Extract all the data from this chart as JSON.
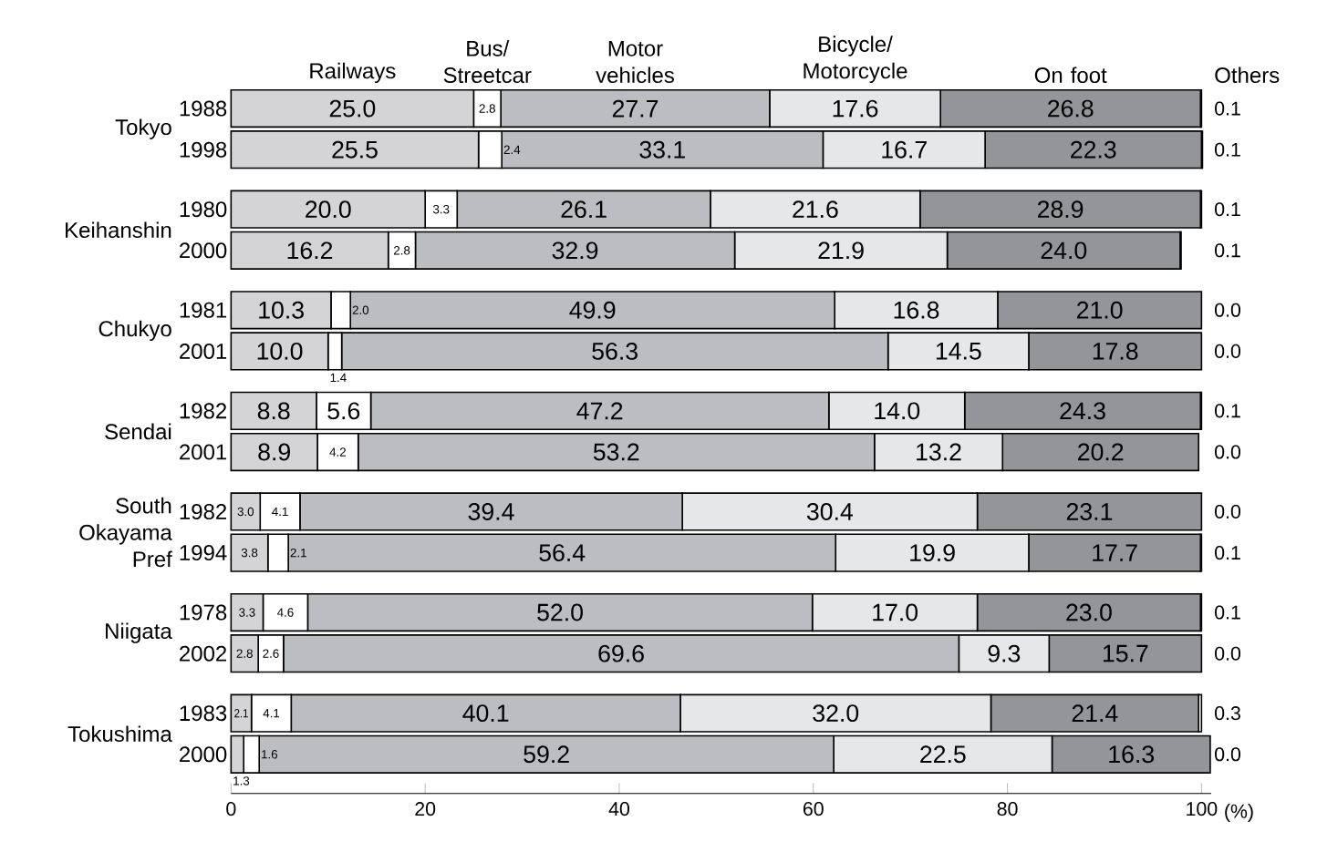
{
  "chart_data": {
    "type": "bar",
    "orientation": "horizontal",
    "stacked": true,
    "legend": "top",
    "grid": false,
    "categories": [
      "1988",
      "1998",
      "1980",
      "2000",
      "1981",
      "2001",
      "1982",
      "2001",
      "1982",
      "1994",
      "1978",
      "2002",
      "1983",
      "2000"
    ],
    "annotations": [
      "Tokyo",
      "Keihanshin",
      "Chukyo",
      "Sendai",
      "South Okayama Pref",
      "Niigata",
      "Tokushima"
    ],
    "xlabel": "(%)",
    "xlim": [
      0,
      101
    ],
    "xticks": [
      0,
      20,
      40,
      60,
      80,
      100
    ],
    "series": [
      {
        "name": "Railways",
        "color": "#d4d4d6",
        "values": [
          25.0,
          25.5,
          20.0,
          16.2,
          10.3,
          10.0,
          8.8,
          8.9,
          3.0,
          3.8,
          3.3,
          2.8,
          2.1,
          1.3
        ],
        "value_labels": [
          "25.0",
          "25.5",
          "20.0",
          "16.2",
          "10.3",
          "10.0",
          "8.8",
          "8.9",
          "3.0",
          "3.8",
          "3.3",
          "2.8",
          "2.1",
          "1.3"
        ]
      },
      {
        "name": "Bus/ Streetcar",
        "color": "#ffffff",
        "values": [
          2.8,
          2.4,
          3.3,
          2.8,
          2.0,
          1.4,
          5.6,
          4.2,
          4.1,
          2.1,
          4.6,
          2.6,
          4.1,
          1.6
        ],
        "value_labels": [
          "2.8",
          "2.4",
          "3.3",
          "2.8",
          "2.0",
          "1.4",
          "5.6",
          "4.2",
          "4.1",
          "2.1",
          "4.6",
          "2.6",
          "4.1",
          "1.6"
        ]
      },
      {
        "name": "Motor vehicles",
        "color": "#bcbdc0",
        "values": [
          27.7,
          33.1,
          26.1,
          32.9,
          49.9,
          56.3,
          47.2,
          53.2,
          39.4,
          56.4,
          52.0,
          69.6,
          40.1,
          59.2
        ],
        "value_labels": [
          "27.7",
          "33.1",
          "26.1",
          "32.9",
          "49.9",
          "56.3",
          "47.2",
          "53.2",
          "39.4",
          "56.4",
          "52.0",
          "69.6",
          "40.1",
          "59.2"
        ]
      },
      {
        "name": "Bicycle/ Motorcycle",
        "color": "#e6e7e8",
        "values": [
          17.6,
          16.7,
          21.6,
          21.9,
          16.8,
          14.5,
          14.0,
          13.2,
          30.4,
          19.9,
          17.0,
          9.3,
          32.0,
          22.5
        ],
        "value_labels": [
          "17.6",
          "16.7",
          "21.6",
          "21.9",
          "16.8",
          "14.5",
          "14.0",
          "13.2",
          "30.4",
          "19.9",
          "17.0",
          "9.3",
          "32.0",
          "22.5"
        ]
      },
      {
        "name": "On foot",
        "color": "#939598",
        "values": [
          26.8,
          22.3,
          28.9,
          24.0,
          21.0,
          17.8,
          24.3,
          20.2,
          23.1,
          17.7,
          23.0,
          15.7,
          21.4,
          16.3
        ],
        "value_labels": [
          "26.8",
          "22.3",
          "28.9",
          "24.0",
          "21.0",
          "17.8",
          "24.3",
          "20.2",
          "23.1",
          "17.7",
          "23.0",
          "15.7",
          "21.4",
          "16.3"
        ]
      },
      {
        "name": "Others",
        "color": "#ffffff",
        "values": [
          0.1,
          0.1,
          0.1,
          0.1,
          0.0,
          0.0,
          0.1,
          0.0,
          0.0,
          0.1,
          0.1,
          0.0,
          0.3,
          0.0
        ],
        "value_labels": [
          "0.1",
          "0.1",
          "0.1",
          "0.1",
          "0.0",
          "0.0",
          "0.1",
          "0.0",
          "0.0",
          "0.1",
          "0.1",
          "0.0",
          "0.3",
          "0.0"
        ]
      }
    ]
  }
}
